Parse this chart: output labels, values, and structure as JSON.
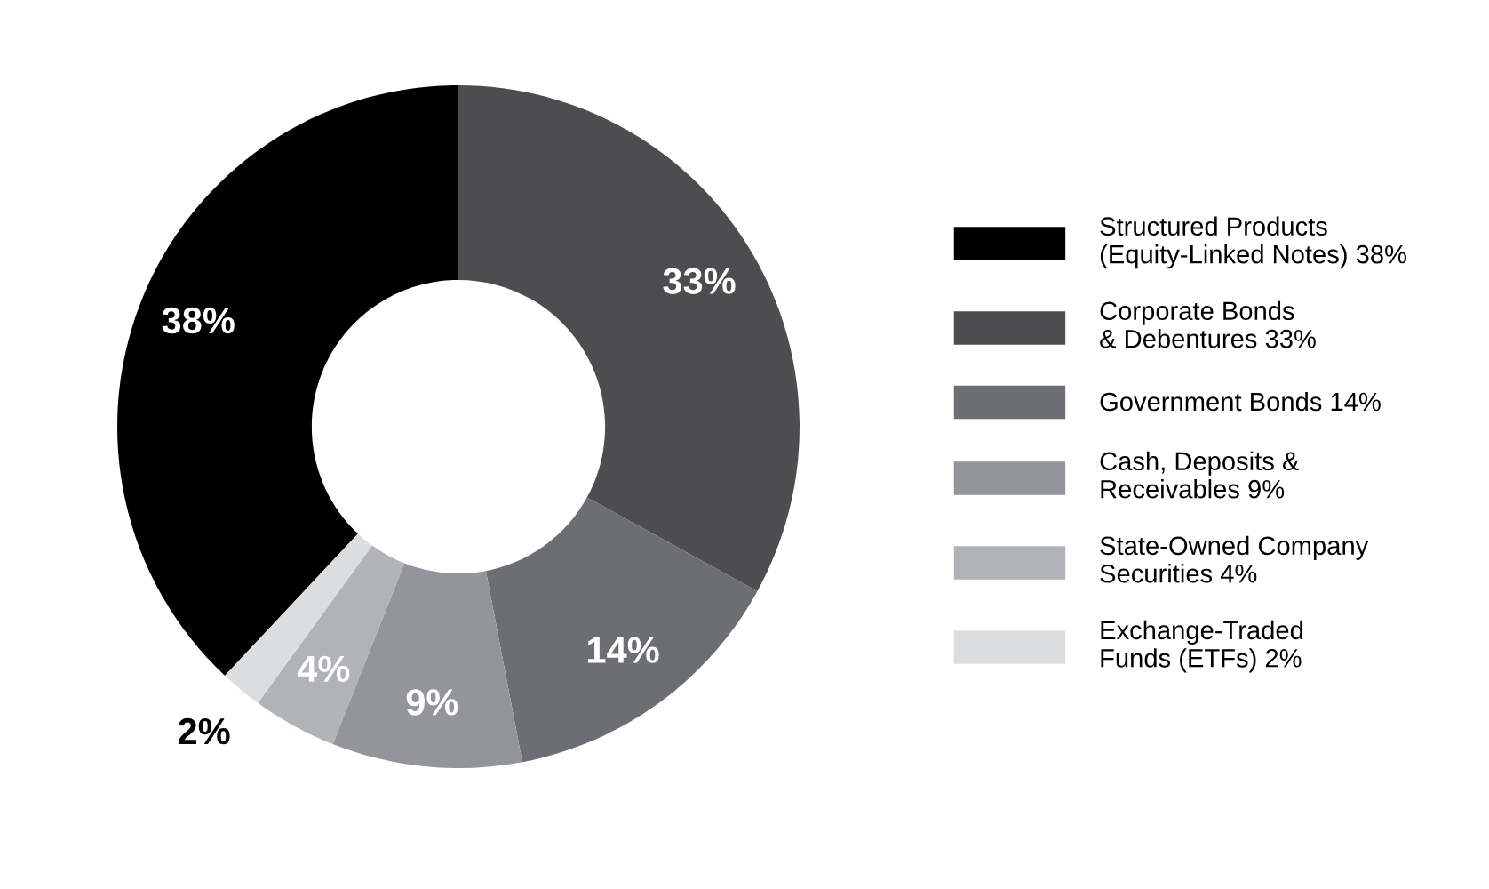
{
  "chart_data": {
    "type": "donut",
    "categories": [
      "Structured Products\n(Equity-Linked Notes) 38%",
      "Corporate Bonds\n& Debentures 33%",
      "Government Bonds 14%",
      "Cash, Deposits &\nReceivables 9%",
      "State-Owned Company\nSecurities 4%",
      "Exchange-Traded\nFunds (ETFs) 2%"
    ],
    "values": [
      38,
      33,
      14,
      9,
      4,
      2
    ],
    "colors": [
      "#000000",
      "#4d4d4f",
      "#6d6e71",
      "#939598",
      "#b1b3b6",
      "#dcddde"
    ],
    "value_labels": [
      "38%",
      "33%",
      "14%",
      "9%",
      "4%",
      "2%"
    ],
    "legend": "right"
  }
}
